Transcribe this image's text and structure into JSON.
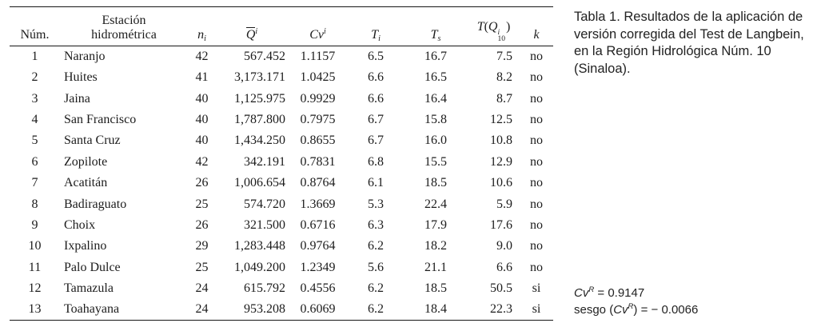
{
  "caption": {
    "text": "Tabla 1. Resultados de la aplicación de versión corregida del Test de Langbein, en la Región Hidrológica Núm. 10 (Sinaloa)."
  },
  "notes": {
    "cv_base": "Cv",
    "cv_sup": "R",
    "cv_value": " = 0.9147",
    "sesgo_prefix": "sesgo (",
    "sesgo_base": "Cv",
    "sesgo_sup": "R",
    "sesgo_value": ") = − 0.0066"
  },
  "table": {
    "headers": {
      "num": "Núm.",
      "station_line1": "Estación",
      "station_line2": "hidrométrica",
      "n_base": "n",
      "n_sub": "i",
      "q_base": "Q",
      "q_sup": "i",
      "cv_base": "Cv",
      "cv_sup": "i",
      "ti_base": "T",
      "ti_sub": "i",
      "ts_base": "T",
      "ts_sub": "s",
      "tq_t": "T",
      "tq_open": "(",
      "tq_q": "Q",
      "tq_sup": "i",
      "tq_sub": "10",
      "tq_close": ")",
      "k": "k"
    },
    "rows": [
      [
        "1",
        "Naranjo",
        "42",
        "567.452",
        "1.1157",
        "6.5",
        "16.7",
        "7.5",
        "no"
      ],
      [
        "2",
        "Huites",
        "41",
        "3,173.171",
        "1.0425",
        "6.6",
        "16.5",
        "8.2",
        "no"
      ],
      [
        "3",
        "Jaina",
        "40",
        "1,125.975",
        "0.9929",
        "6.6",
        "16.4",
        "8.7",
        "no"
      ],
      [
        "4",
        "San Francisco",
        "40",
        "1,787.800",
        "0.7975",
        "6.7",
        "15.8",
        "12.5",
        "no"
      ],
      [
        "5",
        "Santa Cruz",
        "40",
        "1,434.250",
        "0.8655",
        "6.7",
        "16.0",
        "10.8",
        "no"
      ],
      [
        "6",
        "Zopilote",
        "42",
        "342.191",
        "0.7831",
        "6.8",
        "15.5",
        "12.9",
        "no"
      ],
      [
        "7",
        "Acatitán",
        "26",
        "1,006.654",
        "0.8764",
        "6.1",
        "18.5",
        "10.6",
        "no"
      ],
      [
        "8",
        "Badiraguato",
        "25",
        "574.720",
        "1.3669",
        "5.3",
        "22.4",
        "5.9",
        "no"
      ],
      [
        "9",
        "Choix",
        "26",
        "321.500",
        "0.6716",
        "6.3",
        "17.9",
        "17.6",
        "no"
      ],
      [
        "10",
        "Ixpalino",
        "29",
        "1,283.448",
        "0.9764",
        "6.2",
        "18.2",
        "9.0",
        "no"
      ],
      [
        "11",
        "Palo Dulce",
        "25",
        "1,049.200",
        "1.2349",
        "5.6",
        "21.1",
        "6.6",
        "no"
      ],
      [
        "12",
        "Tamazula",
        "24",
        "615.792",
        "0.4556",
        "6.2",
        "18.5",
        "50.5",
        "si"
      ],
      [
        "13",
        "Toahayana",
        "24",
        "953.208",
        "0.6069",
        "6.2",
        "18.4",
        "22.3",
        "si"
      ]
    ]
  }
}
